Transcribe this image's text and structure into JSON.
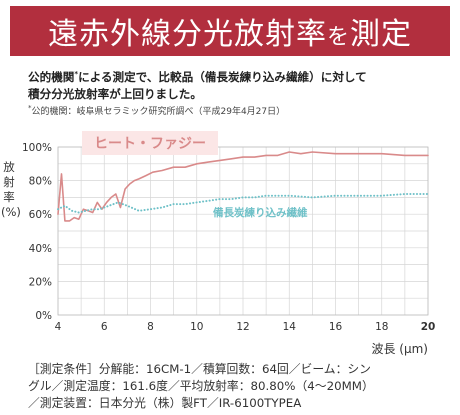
{
  "header": {
    "title_main": "遠赤外線分光放射率",
    "title_particle": "を",
    "title_end": "測定"
  },
  "intro": {
    "line1_a": "公的機関",
    "line1_sup": "*",
    "line1_b": "による測定で、比較品（備長炭練り込み繊維）に対して",
    "line2": "積分分光放射率が上回りました。"
  },
  "note": {
    "star": "*",
    "text": "公的機関：岐阜県セラミック研究所調べ（平成29年4月27日）"
  },
  "colors": {
    "banner": "#b22f3e",
    "heat_fuzzy": "#d98a8a",
    "binchotan": "#6fc1c8"
  },
  "chart_data": {
    "type": "line",
    "title": "",
    "xlabel": "波長",
    "xlabel_unit": "(μm)",
    "ylabel": [
      "放",
      "射",
      "率",
      "(%)"
    ],
    "xlim": [
      4,
      20
    ],
    "ylim": [
      0,
      100
    ],
    "x_ticks": [
      "4",
      "6",
      "8",
      "10",
      "12",
      "14",
      "16",
      "18",
      "20"
    ],
    "y_ticks": [
      "0%",
      "20%",
      "40%",
      "60%",
      "80%",
      "100%"
    ],
    "grid": true,
    "series": [
      {
        "name": "ヒート・ファジー",
        "color": "#d98a8a",
        "style": "solid",
        "x": [
          4.0,
          4.15,
          4.3,
          4.5,
          4.7,
          4.9,
          5.1,
          5.3,
          5.5,
          5.7,
          5.9,
          6.1,
          6.3,
          6.5,
          6.7,
          6.9,
          7.1,
          7.3,
          7.5,
          7.8,
          8.1,
          8.5,
          9.0,
          9.5,
          10.0,
          10.5,
          11.0,
          11.5,
          12.0,
          12.5,
          13.0,
          13.5,
          14.0,
          14.5,
          15.0,
          16.0,
          17.0,
          18.0,
          19.0,
          20.0
        ],
        "y": [
          60,
          84,
          56,
          56,
          58,
          57,
          63,
          62,
          61,
          67,
          63,
          67,
          70,
          72,
          64,
          75,
          78,
          80,
          81,
          83,
          85,
          86,
          88,
          88,
          90,
          91,
          92,
          93,
          94,
          94,
          95,
          95,
          97,
          96,
          97,
          96,
          96,
          96,
          95,
          95
        ]
      },
      {
        "name": "備長炭練り込み繊維",
        "color": "#6fc1c8",
        "style": "dotted",
        "x": [
          4.0,
          4.3,
          4.6,
          4.9,
          5.2,
          5.5,
          5.8,
          6.2,
          6.6,
          7.0,
          7.5,
          8.0,
          8.5,
          9.0,
          9.5,
          10.0,
          10.5,
          11.0,
          11.5,
          12.0,
          12.5,
          13.0,
          14.0,
          15.0,
          16.0,
          17.0,
          18.0,
          19.0,
          20.0
        ],
        "y": [
          63,
          65,
          62,
          61,
          62,
          63,
          63,
          65,
          67,
          65,
          62,
          63,
          64,
          66,
          66,
          67,
          68,
          69,
          69,
          70,
          70,
          71,
          71,
          70,
          71,
          71,
          71,
          72,
          72
        ]
      }
    ]
  },
  "footer": {
    "line1": "［測定条件］分解能：16CM-1／積算回数：64回／ビーム：シン",
    "line2": "グル／測定温度：161.6度／平均放射率：80.80%（4〜20MM）",
    "line3": "／測定装置：日本分光（株）製FT／IR-6100TYPEA"
  }
}
